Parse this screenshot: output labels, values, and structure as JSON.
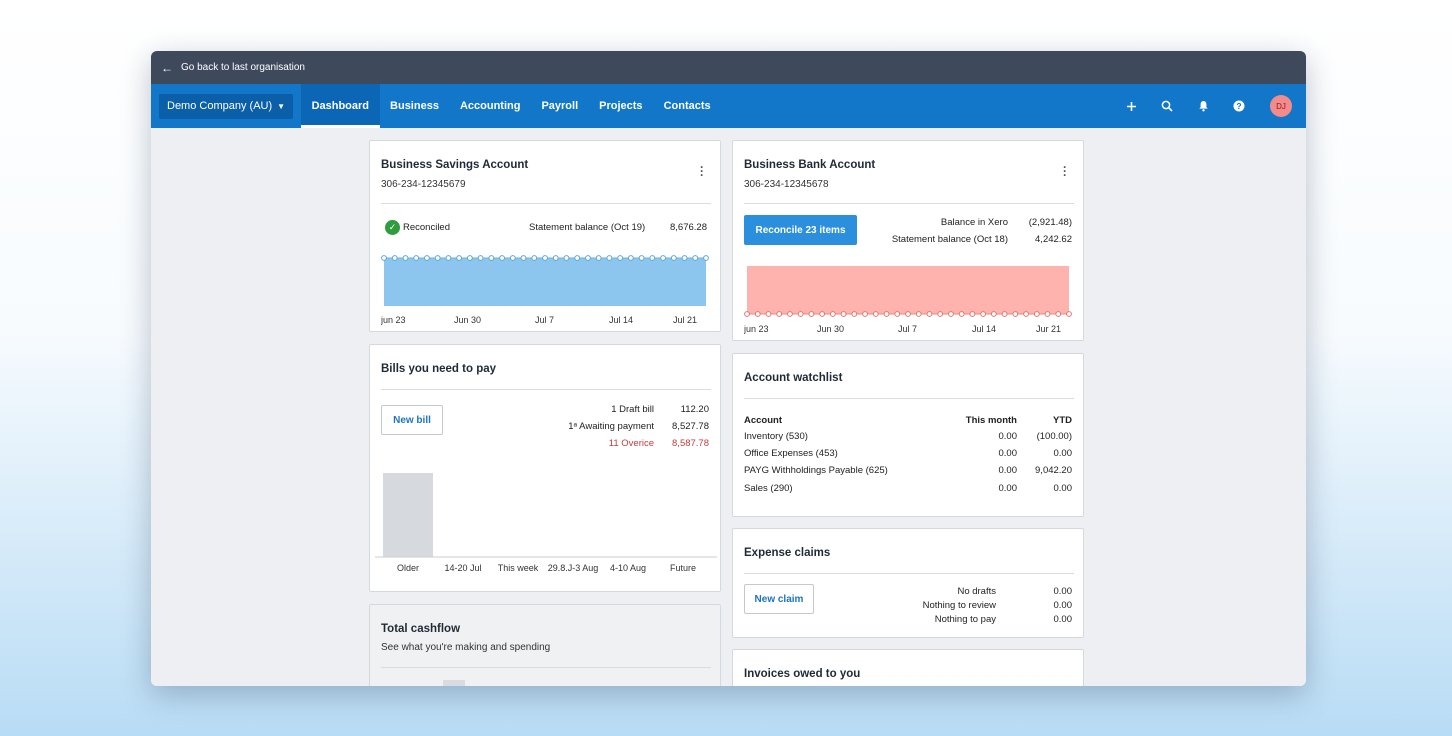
{
  "topbar": {
    "back_label": "Go back to last organisation"
  },
  "nav": {
    "org_name": "Demo Company (AU)",
    "tabs": [
      "Dashboard",
      "Business",
      "Accounting",
      "Payroll",
      "Projects",
      "Contacts"
    ],
    "active_tab": "Dashboard",
    "avatar_initials": "DJ",
    "icons": [
      "plus-icon",
      "search-icon",
      "bell-icon",
      "help-icon"
    ]
  },
  "savings": {
    "title": "Business Savings Account",
    "number": "306-234-12345679",
    "status": "Reconciled",
    "statement_label": "Statement balance (Oct 19)",
    "statement_value": "8,676.28",
    "x_labels": [
      "jun 23",
      "Jun 30",
      "Jul 7",
      "Jul 14",
      "Jul 21"
    ]
  },
  "bank": {
    "title": "Business Bank Account",
    "number": "306-234-12345678",
    "reconcile_label": "Reconcile 23 items",
    "balance_xero_label": "Balance in Xero",
    "balance_xero_value": "(2,921.48)",
    "statement_label": "Statement balance (Oct 18)",
    "statement_value": "4,242.62",
    "x_labels": [
      "jun 23",
      "Jun 30",
      "Jul 7",
      "Jul 14",
      "Jur 21"
    ]
  },
  "bills": {
    "title": "Bills you need to pay",
    "new_bill": "New bill",
    "rows": [
      {
        "label": "1 Draft bill",
        "value": "112.20",
        "overdue": false
      },
      {
        "label": "1ᵃ Awaiting payment",
        "value": "8,527.78",
        "overdue": false
      },
      {
        "label": "11 Overice",
        "value": "8,587.78",
        "overdue": true
      }
    ],
    "x_labels": [
      "Older",
      "14-20 Jul",
      "This week",
      "29.8.J-3 Aug",
      "4-10 Aug",
      "Future"
    ]
  },
  "watchlist": {
    "title": "Account watchlist",
    "headers": [
      "Account",
      "This month",
      "YTD"
    ],
    "rows": [
      {
        "account": "Inventory (530)",
        "month": "0.00",
        "ytd": "(100.00)"
      },
      {
        "account": "Office Expenses (453)",
        "month": "0.00",
        "ytd": "0.00"
      },
      {
        "account": "PAYG Withholdings Payable (625)",
        "month": "0.00",
        "ytd": "9,042.20"
      },
      {
        "account": "Sales (290)",
        "month": "0.00",
        "ytd": "0.00"
      }
    ]
  },
  "expenses": {
    "title": "Expense claims",
    "new_claim": "New claim",
    "rows": [
      {
        "label": "No drafts",
        "value": "0.00"
      },
      {
        "label": "Nothing to review",
        "value": "0.00"
      },
      {
        "label": "Nothing to pay",
        "value": "0.00"
      }
    ]
  },
  "cashflow": {
    "title": "Total cashflow",
    "subtitle": "See what you're making and spending"
  },
  "invoices": {
    "title": "Invoices owed to you"
  },
  "colors": {
    "nav_blue": "#1276c9",
    "savings_fill": "#8cc6ee",
    "bank_fill": "#ffb3ae",
    "overdue_red": "#c83b3b",
    "reconciled_green": "#2e9c3f"
  }
}
